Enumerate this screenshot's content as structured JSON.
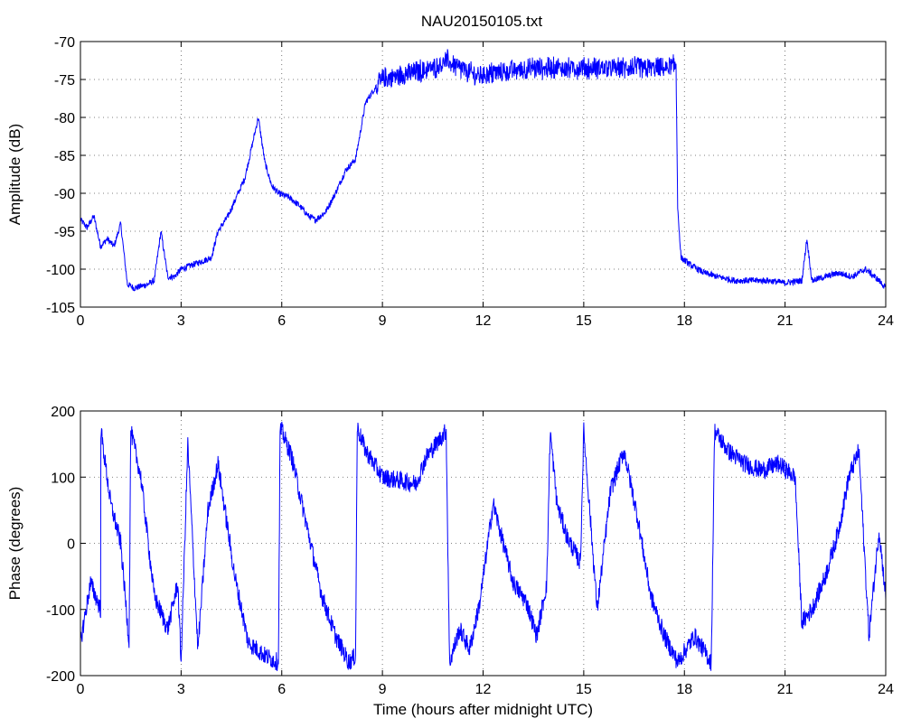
{
  "figure_title": "NAU20150105.txt",
  "series_color": "#0000ff",
  "chart_data": [
    {
      "type": "line",
      "xlabel": "",
      "ylabel": "Amplitude (dB)",
      "xlim": [
        0,
        24
      ],
      "ylim": [
        -105,
        -70
      ],
      "xticks": [
        0,
        3,
        6,
        9,
        12,
        15,
        18,
        21,
        24
      ],
      "yticks": [
        -105,
        -100,
        -95,
        -90,
        -85,
        -80,
        -75,
        -70
      ],
      "grid": true,
      "approx_envelope": {
        "x": [
          0,
          0.2,
          0.4,
          0.6,
          0.8,
          1.0,
          1.2,
          1.4,
          1.6,
          2.0,
          2.2,
          2.4,
          2.6,
          2.8,
          3.0,
          3.3,
          3.6,
          3.9,
          4.1,
          4.4,
          4.7,
          4.9,
          5.1,
          5.3,
          5.5,
          5.7,
          5.9,
          6.2,
          6.5,
          6.8,
          7.0,
          7.3,
          7.6,
          7.9,
          8.2,
          8.5,
          8.8,
          9.0,
          9.5,
          10.0,
          10.5,
          10.9,
          11.3,
          11.8,
          12.5,
          13.5,
          14.5,
          15.5,
          16.5,
          17.5,
          17.75,
          17.8,
          17.9,
          18.2,
          18.6,
          19.0,
          19.5,
          20.0,
          20.5,
          21.0,
          21.5,
          21.65,
          21.8,
          22.2,
          22.6,
          23.0,
          23.4,
          23.8,
          24.0
        ],
        "y": [
          -93.5,
          -94.5,
          -93.0,
          -97.0,
          -96.0,
          -97.0,
          -94.0,
          -102.0,
          -102.5,
          -102.0,
          -101.5,
          -95.0,
          -101.0,
          -101.0,
          -100.0,
          -99.5,
          -99.0,
          -98.5,
          -95.0,
          -93.0,
          -90.0,
          -88.0,
          -84.0,
          -80.0,
          -86.0,
          -89.0,
          -90.0,
          -90.5,
          -91.5,
          -93.0,
          -93.5,
          -92.5,
          -90.0,
          -87.0,
          -85.5,
          -78.0,
          -76.0,
          -75.0,
          -74.5,
          -74.0,
          -73.5,
          -72.5,
          -73.5,
          -74.5,
          -74.0,
          -73.5,
          -73.5,
          -73.5,
          -73.5,
          -73.5,
          -73.0,
          -92.0,
          -98.5,
          -99.5,
          -100.5,
          -101.0,
          -101.5,
          -101.5,
          -101.5,
          -101.8,
          -101.5,
          -96.0,
          -101.5,
          -101.0,
          -100.5,
          -101.0,
          -100.0,
          -101.5,
          -102.5
        ]
      }
    },
    {
      "type": "line",
      "xlabel": "Time (hours after midnight UTC)",
      "ylabel": "Phase (degrees)",
      "xlim": [
        0,
        24
      ],
      "ylim": [
        -200,
        200
      ],
      "xticks": [
        0,
        3,
        6,
        9,
        12,
        15,
        18,
        21,
        24
      ],
      "yticks": [
        -200,
        -100,
        0,
        100,
        200
      ],
      "grid": true,
      "approx_envelope": {
        "x": [
          0,
          0.3,
          0.6,
          0.61,
          0.9,
          1.2,
          1.45,
          1.5,
          1.8,
          2.2,
          2.6,
          2.9,
          3.0,
          3.2,
          3.5,
          3.8,
          4.1,
          4.6,
          5.0,
          5.5,
          5.9,
          5.95,
          6.0,
          6.3,
          6.6,
          6.9,
          7.2,
          7.6,
          8.0,
          8.2,
          8.25,
          8.5,
          9.0,
          9.5,
          10.0,
          10.3,
          10.9,
          11.0,
          11.3,
          11.6,
          11.9,
          12.3,
          12.6,
          12.9,
          13.3,
          13.6,
          13.9,
          14.0,
          14.2,
          14.5,
          14.9,
          15.0,
          15.4,
          15.8,
          16.2,
          16.6,
          17.0,
          17.4,
          17.8,
          18.3,
          18.8,
          18.9,
          19.3,
          19.8,
          20.3,
          20.8,
          21.3,
          21.5,
          21.8,
          22.2,
          22.6,
          22.9,
          23.2,
          23.5,
          23.8,
          24.0
        ],
        "y": [
          -150,
          -60,
          -100,
          170,
          60,
          0,
          -150,
          170,
          100,
          -80,
          -130,
          -60,
          -180,
          150,
          -160,
          50,
          120,
          -50,
          -150,
          -170,
          -180,
          170,
          170,
          130,
          60,
          -10,
          -80,
          -140,
          -180,
          -170,
          175,
          140,
          100,
          95,
          90,
          130,
          170,
          -180,
          -130,
          -160,
          -90,
          60,
          0,
          -60,
          -90,
          -140,
          -60,
          170,
          60,
          10,
          -30,
          170,
          -100,
          80,
          140,
          40,
          -80,
          -140,
          -180,
          -140,
          -180,
          170,
          140,
          120,
          110,
          120,
          100,
          -120,
          -100,
          -50,
          20,
          100,
          140,
          -140,
          20,
          -80
        ]
      }
    }
  ]
}
